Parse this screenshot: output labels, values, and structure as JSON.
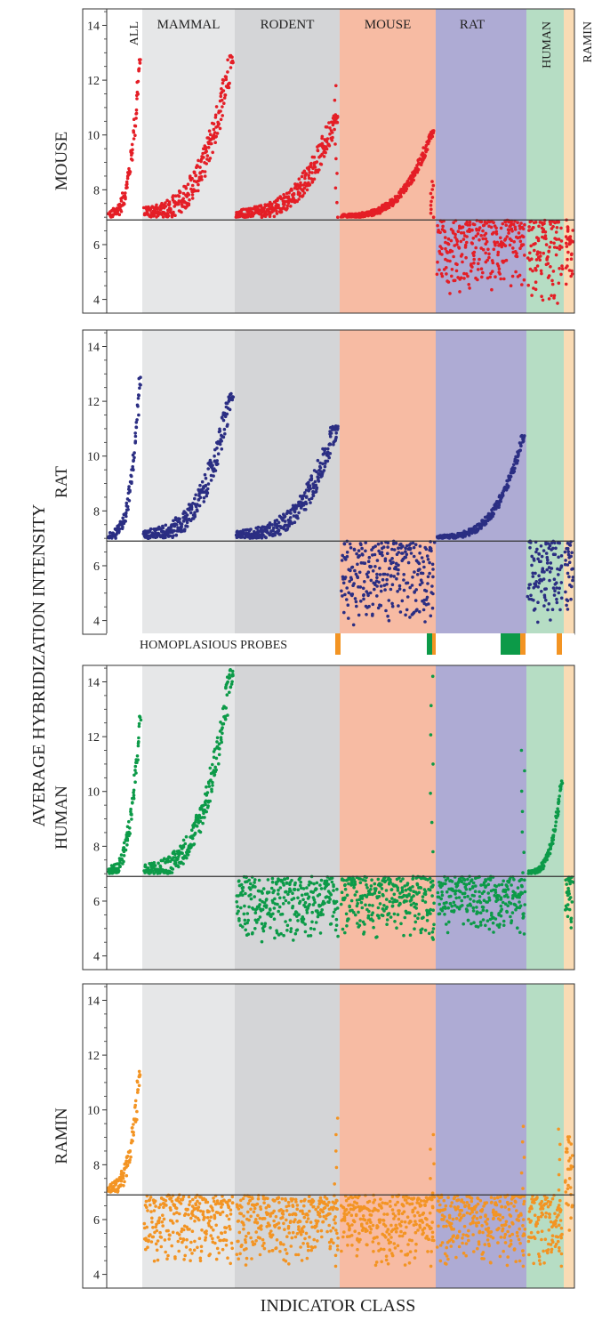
{
  "figure": {
    "y_axis_label": "AVERAGE HYBRIDIZATION INTENSITY",
    "x_axis_label": "INDICATOR CLASS",
    "homoplasious_label": "HOMOPLASIOUS PROBES"
  },
  "colors": {
    "band_all": "#ffffff",
    "band_mammal": "#e6e7e8",
    "band_rodent": "#d4d5d7",
    "band_mouse": "#f7bba3",
    "band_rat": "#aeabd4",
    "band_human": "#b6ddc4",
    "band_ramin": "#fadbb4",
    "mouse_series": "#e41e26",
    "rat_series": "#2b2e83",
    "human_series": "#0c9a48",
    "ramin_series": "#f39423",
    "homoplasy_green": "#0c9a48",
    "homoplasy_orange": "#f39423"
  },
  "chart_data": [
    {
      "type": "scatter",
      "panel": "MOUSE",
      "ylabel": "MOUSE",
      "ylim": [
        3.5,
        14.6
      ],
      "yticks": [
        "4",
        "6",
        "8",
        "10",
        "12",
        "14"
      ],
      "threshold": 6.9,
      "categories": [
        "ALL",
        "MAMMAL",
        "RODENT",
        "MOUSE",
        "RAT",
        "HUMAN",
        "RAMIN"
      ],
      "segments": [
        {
          "class": "ALL",
          "min": 7.0,
          "max": 12.9,
          "scatter": 0.7
        },
        {
          "class": "MAMMAL",
          "min": 7.0,
          "max": 12.9,
          "scatter": 1.1
        },
        {
          "class": "RODENT",
          "min": 7.0,
          "max": 10.7,
          "scatter": 0.8,
          "tail": 11.8
        },
        {
          "class": "MOUSE",
          "min": 7.0,
          "max": 10.2,
          "scatter": 0.3,
          "tail": 8.3
        },
        {
          "class": "RAT",
          "min": 4.2,
          "max": 6.9,
          "scatter": 0.8
        },
        {
          "class": "HUMAN",
          "min": 3.7,
          "max": 6.9,
          "scatter": 1.2
        },
        {
          "class": "RAMIN",
          "min": 3.9,
          "max": 6.9,
          "scatter": 1.0
        }
      ]
    },
    {
      "type": "scatter",
      "panel": "RAT",
      "ylabel": "RAT",
      "ylim": [
        3.5,
        14.6
      ],
      "yticks": [
        "4",
        "6",
        "8",
        "10",
        "12",
        "14"
      ],
      "threshold": 6.9,
      "categories": [
        "ALL",
        "MAMMAL",
        "RODENT",
        "MOUSE",
        "RAT",
        "HUMAN",
        "RAMIN"
      ],
      "segments": [
        {
          "class": "ALL",
          "min": 7.0,
          "max": 12.9,
          "scatter": 0.6
        },
        {
          "class": "MAMMAL",
          "min": 7.0,
          "max": 12.3,
          "scatter": 0.9
        },
        {
          "class": "RODENT",
          "min": 7.0,
          "max": 11.1,
          "scatter": 0.8
        },
        {
          "class": "MOUSE",
          "min": 3.8,
          "max": 6.9,
          "scatter": 1.5
        },
        {
          "class": "RAT",
          "min": 7.0,
          "max": 10.8,
          "scatter": 0.3
        },
        {
          "class": "HUMAN",
          "min": 3.9,
          "max": 6.9,
          "scatter": 1.3
        },
        {
          "class": "RAMIN",
          "min": 4.0,
          "max": 6.9,
          "scatter": 1.2
        }
      ]
    },
    {
      "type": "scatter",
      "panel": "HUMAN",
      "ylabel": "HUMAN",
      "ylim": [
        3.5,
        14.6
      ],
      "yticks": [
        "4",
        "6",
        "8",
        "10",
        "12",
        "14"
      ],
      "threshold": 6.9,
      "categories": [
        "ALL",
        "MAMMAL",
        "RODENT",
        "MOUSE",
        "RAT",
        "HUMAN",
        "RAMIN"
      ],
      "segments": [
        {
          "class": "ALL",
          "min": 7.0,
          "max": 12.8,
          "scatter": 0.7
        },
        {
          "class": "MAMMAL",
          "min": 7.0,
          "max": 14.5,
          "scatter": 1.0
        },
        {
          "class": "RODENT",
          "min": 4.5,
          "max": 6.9,
          "scatter": 0.5
        },
        {
          "class": "MOUSE",
          "min": 4.6,
          "max": 6.9,
          "scatter": 0.8,
          "tail": 14.2
        },
        {
          "class": "RAT",
          "min": 4.8,
          "max": 6.9,
          "scatter": 0.6,
          "tail": 11.5
        },
        {
          "class": "HUMAN",
          "min": 7.0,
          "max": 10.4,
          "scatter": 0.3
        },
        {
          "class": "RAMIN",
          "min": 4.8,
          "max": 6.9,
          "scatter": 0.6
        }
      ]
    },
    {
      "type": "scatter",
      "panel": "RAMIN",
      "ylabel": "RAMIN",
      "ylim": [
        3.5,
        14.6
      ],
      "yticks": [
        "4",
        "6",
        "8",
        "10",
        "12",
        "14"
      ],
      "threshold": 6.9,
      "categories": [
        "ALL",
        "MAMMAL",
        "RODENT",
        "MOUSE",
        "RAT",
        "HUMAN",
        "RAMIN"
      ],
      "segments": [
        {
          "class": "ALL",
          "min": 7.0,
          "max": 11.5,
          "scatter": 0.8
        },
        {
          "class": "MAMMAL",
          "min": 4.3,
          "max": 6.9,
          "scatter": 0.7
        },
        {
          "class": "RODENT",
          "min": 4.3,
          "max": 6.9,
          "scatter": 0.5,
          "tail": 9.7
        },
        {
          "class": "MOUSE",
          "min": 4.3,
          "max": 6.9,
          "scatter": 0.5,
          "tail": 9.1
        },
        {
          "class": "RAT",
          "min": 4.3,
          "max": 6.9,
          "scatter": 0.6,
          "tail": 9.4
        },
        {
          "class": "HUMAN",
          "min": 4.3,
          "max": 6.9,
          "scatter": 0.6,
          "tail": 9.3
        },
        {
          "class": "RAMIN",
          "min": 4.8,
          "max": 9.2,
          "scatter": 0.6
        }
      ]
    }
  ]
}
